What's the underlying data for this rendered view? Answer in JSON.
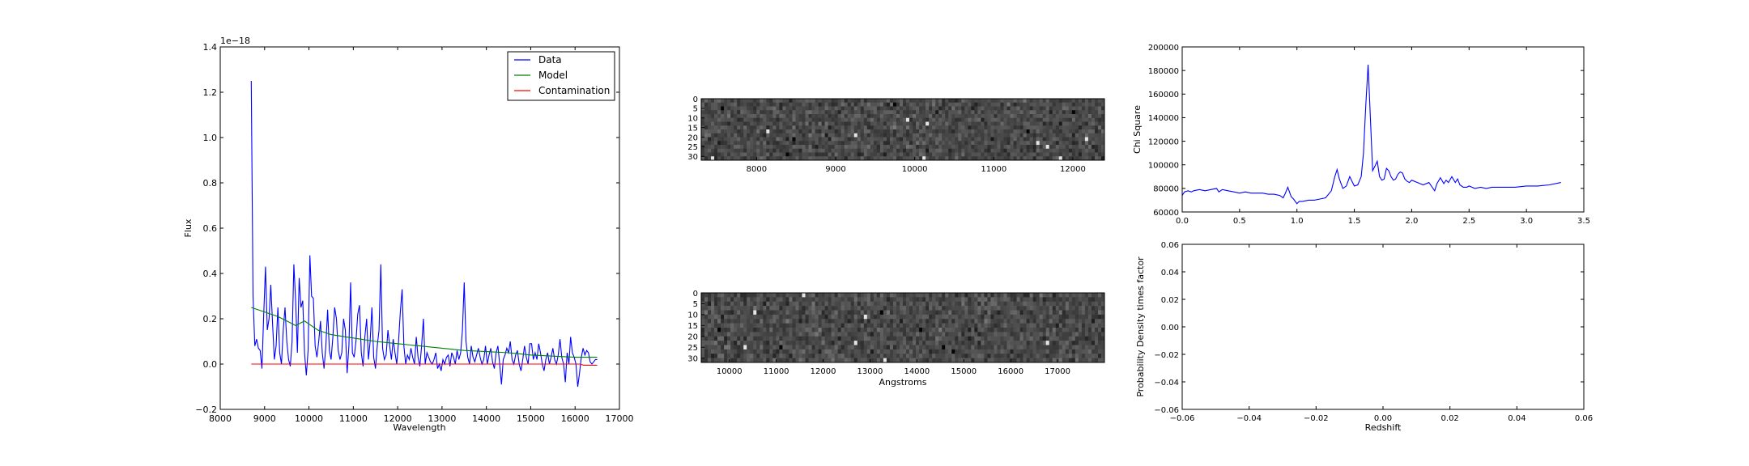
{
  "chart_data": [
    {
      "type": "line",
      "xlabel": "Wavelength",
      "ylabel": "Flux",
      "offset_text": "1e−18",
      "xlim": [
        8000,
        17000
      ],
      "ylim": [
        -0.2,
        1.4
      ],
      "xticks": [
        "8000",
        "9000",
        "10000",
        "11000",
        "12000",
        "13000",
        "14000",
        "15000",
        "16000",
        "17000"
      ],
      "yticks": [
        "−0.2",
        "0.0",
        "0.2",
        "0.4",
        "0.6",
        "0.8",
        "1.0",
        "1.2",
        "1.4"
      ],
      "legend_position": "top-right",
      "series": [
        {
          "name": "Data",
          "color": "#0000ff",
          "x": [
            8700,
            8740,
            8780,
            8820,
            8860,
            8900,
            8940,
            8980,
            9020,
            9060,
            9100,
            9140,
            9180,
            9220,
            9260,
            9300,
            9340,
            9380,
            9420,
            9460,
            9500,
            9540,
            9580,
            9620,
            9660,
            9700,
            9740,
            9780,
            9820,
            9860,
            9900,
            9940,
            9980,
            10020,
            10060,
            10100,
            10140,
            10180,
            10220,
            10260,
            10300,
            10340,
            10380,
            10420,
            10460,
            10500,
            10540,
            10580,
            10620,
            10660,
            10700,
            10740,
            10780,
            10820,
            10860,
            10900,
            10940,
            10980,
            11020,
            11060,
            11100,
            11140,
            11180,
            11220,
            11260,
            11300,
            11340,
            11380,
            11420,
            11460,
            11500,
            11540,
            11580,
            11620,
            11660,
            11700,
            11740,
            11780,
            11820,
            11860,
            11900,
            11940,
            11980,
            12020,
            12060,
            12100,
            12140,
            12180,
            12220,
            12260,
            12300,
            12340,
            12380,
            12420,
            12460,
            12500,
            12540,
            12580,
            12620,
            12660,
            12700,
            12740,
            12780,
            12820,
            12860,
            12900,
            12940,
            12980,
            13020,
            13060,
            13100,
            13140,
            13180,
            13220,
            13260,
            13300,
            13340,
            13380,
            13420,
            13460,
            13500,
            13540,
            13580,
            13620,
            13660,
            13700,
            13740,
            13780,
            13820,
            13860,
            13900,
            13940,
            13980,
            14020,
            14060,
            14100,
            14140,
            14180,
            14220,
            14260,
            14300,
            14340,
            14380,
            14420,
            14460,
            14500,
            14540,
            14580,
            14620,
            14660,
            14700,
            14740,
            14780,
            14820,
            14860,
            14900,
            14940,
            14980,
            15020,
            15060,
            15100,
            15140,
            15180,
            15220,
            15260,
            15300,
            15340,
            15380,
            15420,
            15460,
            15500,
            15540,
            15580,
            15620,
            15660,
            15700,
            15740,
            15780,
            15820,
            15860,
            15900,
            15940,
            15980,
            16020,
            16060,
            16100,
            16140,
            16180,
            16220,
            16260,
            16300,
            16340,
            16380,
            16420,
            16460,
            16500
          ],
          "y": [
            1.25,
            0.3,
            0.08,
            0.11,
            0.07,
            0.06,
            -0.02,
            0.22,
            0.43,
            0.15,
            0.2,
            0.35,
            0.18,
            0.02,
            0.08,
            0.25,
            0.05,
            0.0,
            0.15,
            0.25,
            0.1,
            0.02,
            -0.01,
            0.1,
            0.44,
            0.28,
            0.05,
            0.38,
            0.25,
            0.28,
            0.05,
            -0.05,
            0.06,
            0.48,
            0.3,
            0.29,
            0.08,
            0.03,
            0.1,
            0.19,
            0.05,
            -0.02,
            0.08,
            0.24,
            0.06,
            0.02,
            0.12,
            0.25,
            0.2,
            0.06,
            0.02,
            0.05,
            0.2,
            0.15,
            -0.04,
            0.08,
            0.36,
            0.05,
            0.03,
            0.1,
            0.22,
            0.26,
            0.05,
            -0.01,
            0.12,
            0.2,
            0.02,
            0.1,
            0.25,
            0.03,
            -0.02,
            0.08,
            0.15,
            0.44,
            0.07,
            0.02,
            0.04,
            0.15,
            0.08,
            0.02,
            0.11,
            0.05,
            0.0,
            0.1,
            0.23,
            0.33,
            0.08,
            0.0,
            0.04,
            0.02,
            0.07,
            0.03,
            0.0,
            0.12,
            0.03,
            -0.01,
            0.08,
            0.2,
            0.0,
            0.05,
            0.03,
            0.01,
            0.0,
            0.02,
            0.05,
            -0.02,
            0.0,
            -0.03,
            0.02,
            0.0,
            0.03,
            0.04,
            -0.01,
            0.05,
            0.03,
            0.0,
            0.06,
            0.02,
            0.05,
            0.15,
            0.36,
            0.1,
            0.03,
            0.0,
            0.08,
            0.03,
            0.01,
            0.04,
            0.07,
            0.03,
            0.0,
            0.02,
            0.08,
            0.0,
            0.04,
            0.07,
            0.01,
            -0.02,
            0.05,
            0.08,
            0.0,
            -0.09,
            0.02,
            0.04,
            0.07,
            0.05,
            0.1,
            0.02,
            0.0,
            0.04,
            0.06,
            0.0,
            -0.03,
            0.02,
            0.08,
            0.03,
            0.0,
            0.09,
            0.09,
            0.02,
            0.05,
            0.02,
            0.09,
            0.05,
            0.0,
            -0.03,
            0.02,
            0.05,
            0.0,
            0.03,
            0.07,
            0.02,
            0.0,
            0.04,
            0.11,
            0.03,
            0.0,
            -0.08,
            0.05,
            0.0,
            0.12,
            0.05,
            0.03,
            0.0,
            -0.1,
            -0.04,
            0.03,
            0.07,
            0.04,
            0.06,
            0.05,
            0.01,
            0.0,
            0.01,
            0.02,
            0.02
          ]
        },
        {
          "name": "Model",
          "color": "#008000",
          "x": [
            8700,
            9000,
            9300,
            9500,
            9700,
            9900,
            10200,
            10500,
            11000,
            11500,
            12000,
            12500,
            13000,
            13500,
            14000,
            14500,
            15000,
            15500,
            16000,
            16500
          ],
          "y": [
            0.25,
            0.23,
            0.21,
            0.19,
            0.17,
            0.19,
            0.15,
            0.13,
            0.115,
            0.1,
            0.09,
            0.08,
            0.07,
            0.06,
            0.055,
            0.05,
            0.04,
            0.035,
            0.03,
            0.03
          ]
        },
        {
          "name": "Contamination",
          "color": "#ff0000",
          "x": [
            8700,
            9500,
            10500,
            11500,
            12500,
            13500,
            14500,
            15500,
            16000,
            16100,
            16200,
            16300,
            16500
          ],
          "y": [
            0.0,
            0.0,
            0.0,
            0.0,
            0.0,
            0.0,
            0.0,
            0.0,
            0.0,
            0.0,
            -0.005,
            -0.005,
            -0.005
          ]
        }
      ]
    },
    {
      "type": "heatmap",
      "xticks": [
        "8000",
        "9000",
        "10000",
        "11000",
        "12000"
      ],
      "yticks": [
        "0",
        "5",
        "10",
        "15",
        "20",
        "25",
        "30"
      ],
      "xlim": [
        7300,
        12400
      ],
      "ylim": [
        0,
        32
      ],
      "colormap": "gray"
    },
    {
      "type": "heatmap",
      "xlabel": "Angstroms",
      "xticks": [
        "10000",
        "11000",
        "12000",
        "13000",
        "14000",
        "15000",
        "16000",
        "17000"
      ],
      "yticks": [
        "0",
        "5",
        "10",
        "15",
        "20",
        "25",
        "30"
      ],
      "xlim": [
        9400,
        18000
      ],
      "ylim": [
        0,
        32
      ],
      "colormap": "gray"
    },
    {
      "type": "line",
      "ylabel": "Chi Square",
      "xlim": [
        0.0,
        3.5
      ],
      "ylim": [
        60000,
        200000
      ],
      "xticks": [
        "0.0",
        "0.5",
        "1.0",
        "1.5",
        "2.0",
        "2.5",
        "3.0",
        "3.5"
      ],
      "yticks": [
        "60000",
        "80000",
        "100000",
        "120000",
        "140000",
        "160000",
        "180000",
        "200000"
      ],
      "series": [
        {
          "color": "#0000ff",
          "x": [
            0.0,
            0.02,
            0.05,
            0.08,
            0.1,
            0.15,
            0.2,
            0.25,
            0.3,
            0.32,
            0.35,
            0.4,
            0.45,
            0.5,
            0.55,
            0.6,
            0.65,
            0.7,
            0.75,
            0.8,
            0.85,
            0.88,
            0.9,
            0.92,
            0.95,
            0.97,
            1.0,
            1.02,
            1.05,
            1.1,
            1.15,
            1.2,
            1.25,
            1.3,
            1.33,
            1.35,
            1.37,
            1.4,
            1.43,
            1.46,
            1.48,
            1.5,
            1.53,
            1.56,
            1.58,
            1.6,
            1.62,
            1.64,
            1.66,
            1.68,
            1.7,
            1.72,
            1.74,
            1.76,
            1.78,
            1.8,
            1.82,
            1.84,
            1.86,
            1.88,
            1.9,
            1.92,
            1.94,
            1.96,
            1.98,
            2.0,
            2.05,
            2.1,
            2.15,
            2.2,
            2.22,
            2.25,
            2.28,
            2.3,
            2.32,
            2.35,
            2.38,
            2.4,
            2.42,
            2.45,
            2.48,
            2.5,
            2.55,
            2.6,
            2.65,
            2.7,
            2.8,
            2.9,
            3.0,
            3.1,
            3.2,
            3.3
          ],
          "y": [
            74000,
            77000,
            78000,
            77000,
            78000,
            79000,
            78000,
            79000,
            80000,
            77000,
            79000,
            78000,
            77000,
            76000,
            77000,
            76000,
            76000,
            76000,
            75000,
            75000,
            74000,
            72000,
            76000,
            81000,
            73000,
            71000,
            67000,
            69000,
            69000,
            70000,
            70000,
            71000,
            72000,
            78000,
            90000,
            96000,
            88000,
            80000,
            82000,
            90000,
            86000,
            82000,
            83000,
            90000,
            110000,
            150000,
            185000,
            140000,
            95000,
            99000,
            103000,
            90000,
            87000,
            88000,
            97000,
            95000,
            90000,
            87000,
            88000,
            92000,
            94000,
            93000,
            88000,
            86000,
            85000,
            87000,
            85000,
            83000,
            85000,
            78000,
            84000,
            89000,
            84000,
            87000,
            85000,
            90000,
            85000,
            88000,
            83000,
            81000,
            81000,
            82000,
            80000,
            81000,
            80000,
            81000,
            81000,
            81000,
            82000,
            82000,
            83000,
            85000
          ]
        }
      ]
    },
    {
      "type": "line",
      "xlabel": "Redshift",
      "ylabel": "Probability Density times factor",
      "xlim": [
        -0.06,
        0.06
      ],
      "ylim": [
        -0.06,
        0.06
      ],
      "xticks": [
        "−0.06",
        "−0.04",
        "−0.02",
        "0.00",
        "0.02",
        "0.04",
        "0.06"
      ],
      "yticks": [
        "−0.06",
        "−0.04",
        "−0.02",
        "0.00",
        "0.02",
        "0.04",
        "0.06"
      ],
      "series": []
    }
  ]
}
